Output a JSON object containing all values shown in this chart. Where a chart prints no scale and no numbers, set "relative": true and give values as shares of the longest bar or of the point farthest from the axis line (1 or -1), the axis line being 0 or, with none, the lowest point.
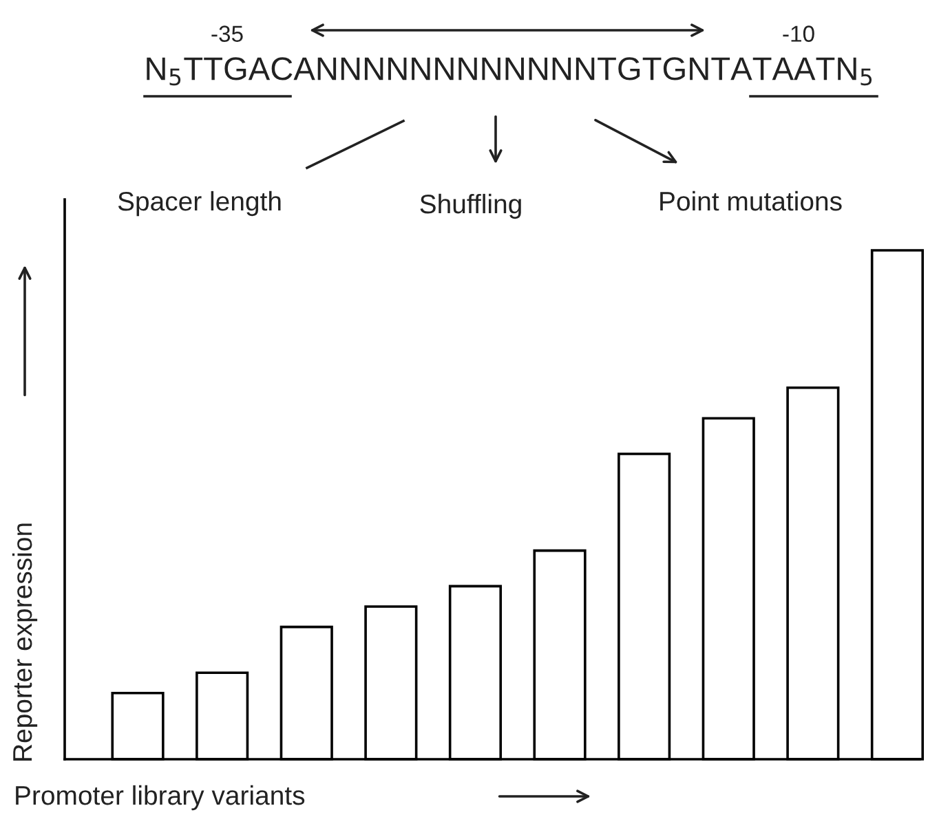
{
  "chart_data": {
    "type": "bar",
    "relative": true,
    "categories": [
      null,
      null,
      null,
      null,
      null,
      null,
      null,
      null,
      null,
      null
    ],
    "values": [
      0.13,
      0.17,
      0.26,
      0.3,
      0.34,
      0.41,
      0.6,
      0.67,
      0.73,
      1.0
    ],
    "color": "#ffffff",
    "xlabel": "Promoter library variants",
    "ylabel": "Reporter expression",
    "annotations": [
      "N$_{5}$TTGACANNNNNNNNNNNNTGTGNTATAATN$_{5}$",
      "-35",
      "-10",
      "Spacer length",
      "Shuffling",
      "Point mutations"
    ]
  }
}
